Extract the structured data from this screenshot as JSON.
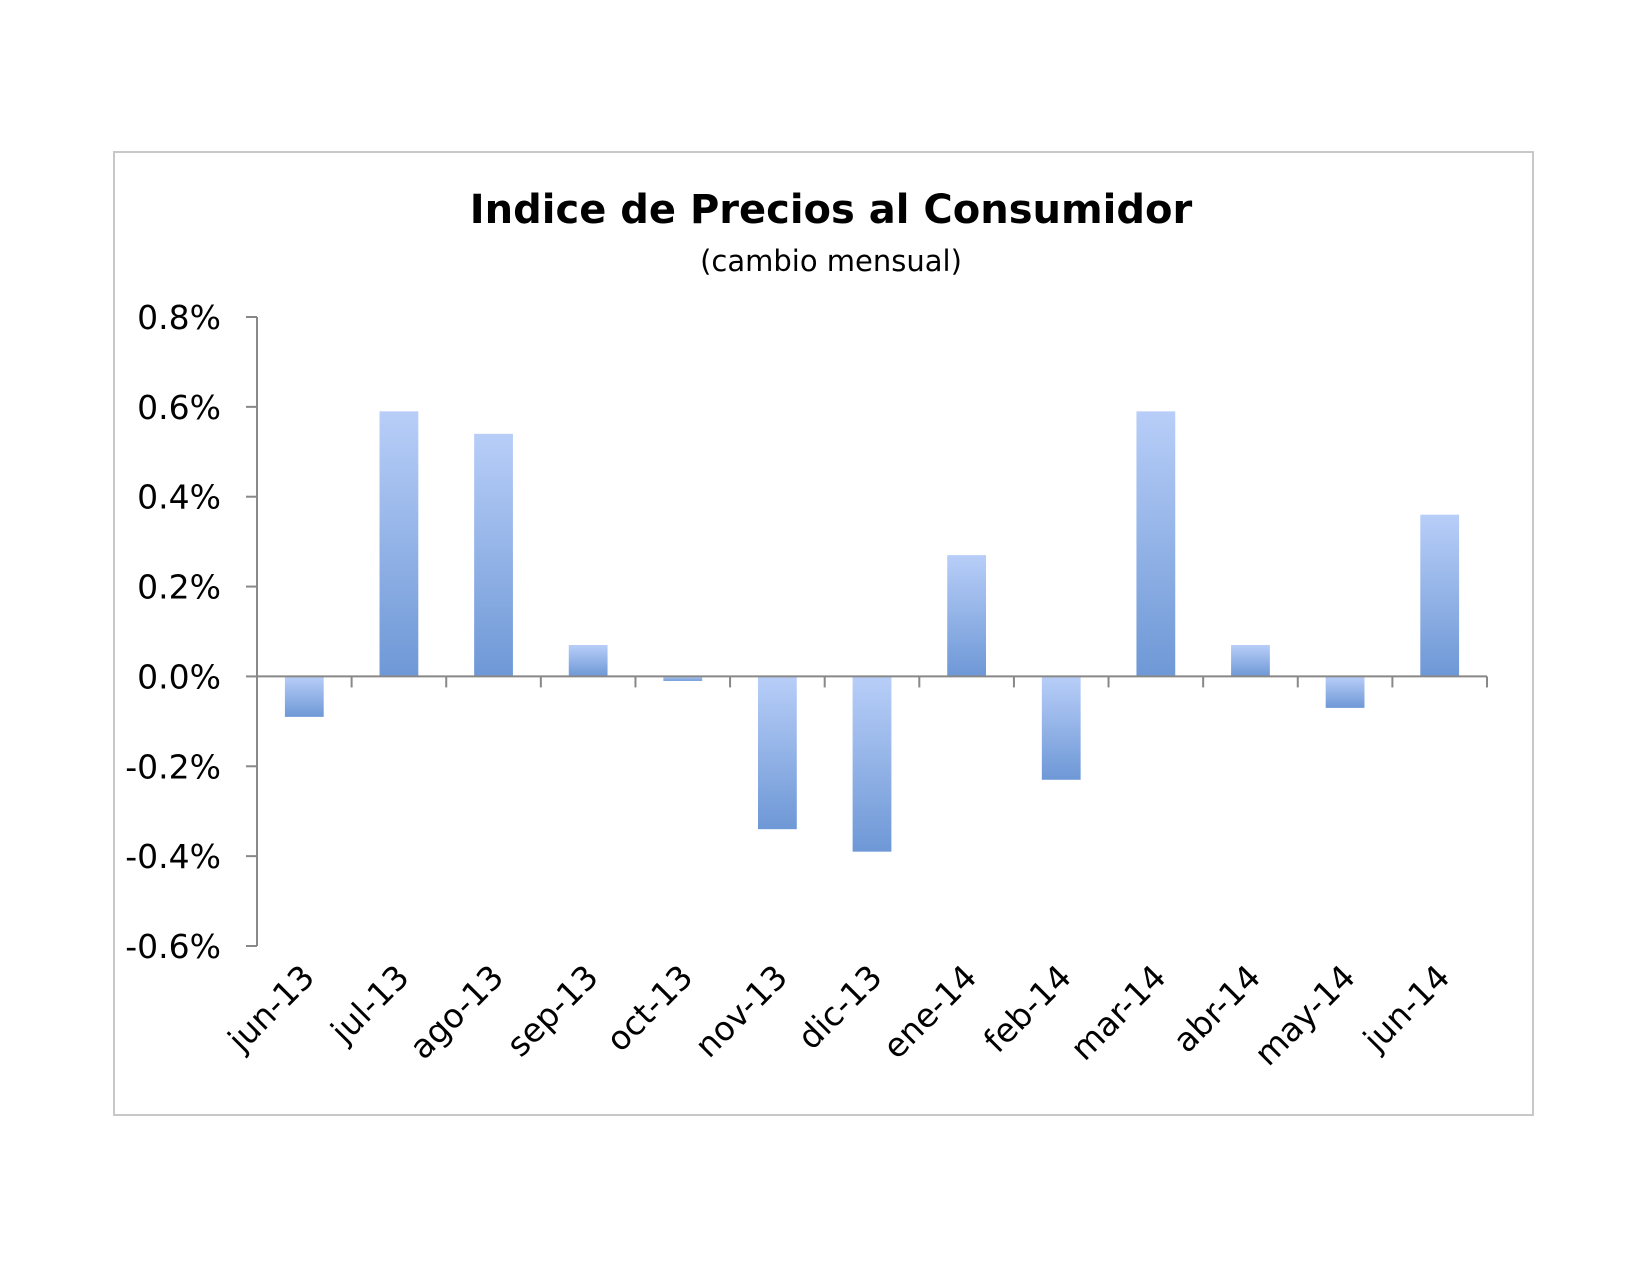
{
  "chart_data": {
    "type": "bar",
    "title": "Indice de Precios al Consumidor",
    "subtitle": "(cambio mensual)",
    "xlabel": "",
    "ylabel": "",
    "categories": [
      "jun-13",
      "jul-13",
      "ago-13",
      "sep-13",
      "oct-13",
      "nov-13",
      "dic-13",
      "ene-14",
      "feb-14",
      "mar-14",
      "abr-14",
      "may-14",
      "jun-14"
    ],
    "values": [
      -0.09,
      0.59,
      0.54,
      0.07,
      -0.01,
      -0.34,
      -0.39,
      0.27,
      -0.23,
      0.59,
      0.07,
      -0.07,
      0.36
    ],
    "ylim": [
      -0.6,
      0.8
    ],
    "yticks": [
      0.8,
      0.6,
      0.4,
      0.2,
      0.0,
      -0.2,
      -0.4,
      -0.6
    ],
    "ytick_labels": [
      "0.8%",
      "0.6%",
      "0.4%",
      "0.2%",
      "0.0%",
      "-0.2%",
      "-0.4%",
      "-0.6%"
    ],
    "grid": false,
    "legend": "none",
    "bar_color_top": "#b8cef8",
    "bar_color_bottom": "#6e98d6"
  }
}
